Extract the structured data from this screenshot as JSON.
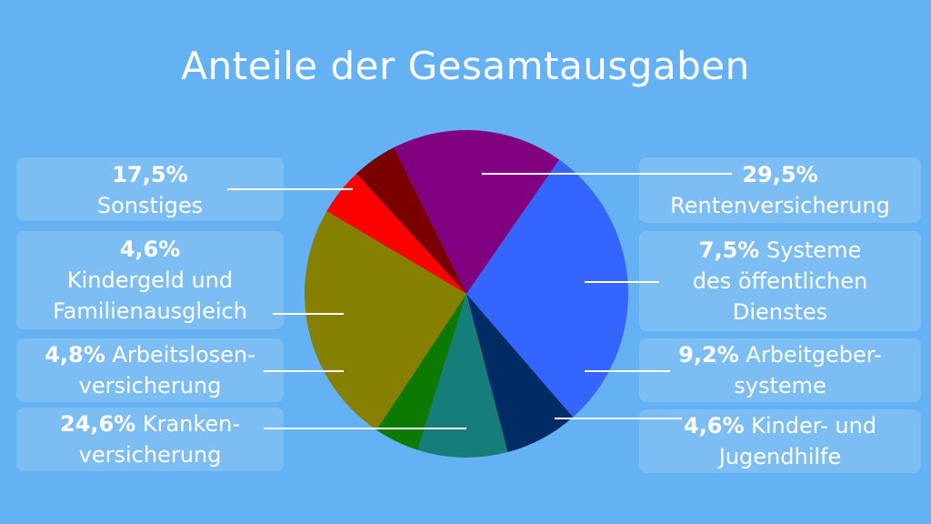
{
  "title": "Anteile der Gesamtausgaben",
  "chart_data": {
    "type": "pie",
    "title": "Anteile der Gesamtausgaben",
    "slices": [
      {
        "label_pct": "29,5%",
        "label_name": "Rentenversicherung",
        "value": 29.5,
        "color": "#3565ff"
      },
      {
        "label_pct": "7,5%",
        "label_name": "Systeme des öffentlichen Dienstes",
        "value": 7.5,
        "color": "#002c66"
      },
      {
        "label_pct": "9,2%",
        "label_name": "Arbeitgeber-systeme",
        "value": 9.2,
        "color": "#157d7a"
      },
      {
        "label_pct": "4,6%",
        "label_name": "Kinder- und Jugendhilfe",
        "value": 4.6,
        "color": "#0c7a00"
      },
      {
        "label_pct": "24,6%",
        "label_name": "Kranken-versicherung",
        "value": 24.6,
        "color": "#868000"
      },
      {
        "label_pct": "4,8%",
        "label_name": "Arbeitslosen-versicherung",
        "value": 4.8,
        "color": "#ff0000"
      },
      {
        "label_pct": "4,6%",
        "label_name": "Kindergeld und Familienausgleich",
        "value": 4.6,
        "color": "#7a0000"
      },
      {
        "label_pct": "17,5%",
        "label_name": "Sonstiges",
        "value": 17.5,
        "color": "#800080"
      }
    ]
  },
  "labels": {
    "renten": {
      "pct": "29,5%",
      "l1": "Rentenversicherung"
    },
    "systeme": {
      "pct": "7,5%",
      "l1a": " Systeme",
      "l2": "des öffentlichen",
      "l3": "Dienstes"
    },
    "arbeitgeber": {
      "pct": "9,2%",
      "l1a": " Arbeitgeber-",
      "l2": "systeme"
    },
    "kinderhilfe": {
      "pct": "4,6%",
      "l1a": " Kinder- und",
      "l2": "Jugendhilfe"
    },
    "sonstiges": {
      "pct": "17,5%",
      "l1": "Sonstiges"
    },
    "kindergeld": {
      "pct": "4,6%",
      "l1": "Kindergeld und",
      "l2": "Familienausgleich"
    },
    "arbeitslosen": {
      "pct": "4,8%",
      "l1a": " Arbeitslosen-",
      "l2": "versicherung"
    },
    "kranken": {
      "pct": "24,6%",
      "l1a": " Kranken-",
      "l2": "versicherung"
    }
  }
}
